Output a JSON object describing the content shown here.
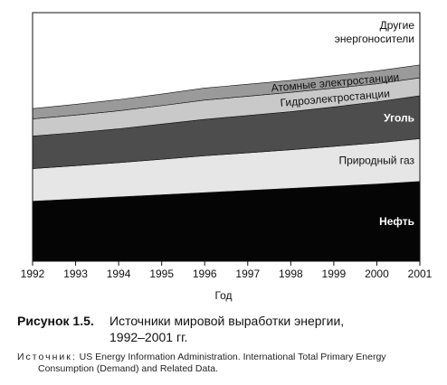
{
  "chart_data": {
    "type": "area",
    "stacked": true,
    "title": "",
    "xlabel": "Год",
    "ylabel": "",
    "x": [
      "1992",
      "1993",
      "1994",
      "1995",
      "1996",
      "1997",
      "1998",
      "1999",
      "2000",
      "2001"
    ],
    "series": [
      {
        "name": "Нефть",
        "label_color": "#ffffff",
        "color": "#050505",
        "values": [
          70,
          72.5,
          75,
          77.5,
          80,
          82.5,
          85,
          87.5,
          90,
          93
        ]
      },
      {
        "name": "Природный газ",
        "label_color": "#111111",
        "color": "#e6e6e6",
        "values": [
          38,
          39,
          40,
          41.5,
          43,
          44,
          45,
          46.5,
          48,
          50
        ]
      },
      {
        "name": "Уголь",
        "label_color": "#ffffff",
        "color": "#4d4d4d",
        "values": [
          38,
          38.5,
          39.5,
          41,
          42.5,
          43.5,
          44.5,
          46,
          48,
          50
        ]
      },
      {
        "name": "Гидроэлектростанции",
        "label_color": "#111111",
        "color": "#c9c9c9",
        "values": [
          20,
          20.5,
          21,
          21.5,
          22.5,
          22.5,
          22.5,
          22,
          21,
          21
        ]
      },
      {
        "name": "Атомные электростанции",
        "label_color": "#111111",
        "color": "#9a9a9a",
        "values": [
          12,
          12.5,
          13,
          13.5,
          14,
          14,
          14,
          14.5,
          15,
          15
        ]
      }
    ],
    "top_region_label": [
      "Другие",
      "энергоносители"
    ],
    "grid": false,
    "legend": "inline labels"
  },
  "caption": {
    "figure_number": "Рисунок 1.5.",
    "title_line1": "Источники мировой выработки энергии,",
    "title_line2": "1992–2001 гг."
  },
  "source": {
    "label": "Источник:",
    "line1": "US Energy Information Administration. International Total Primary Energy",
    "line2": "Consumption (Demand) and Related Data."
  }
}
